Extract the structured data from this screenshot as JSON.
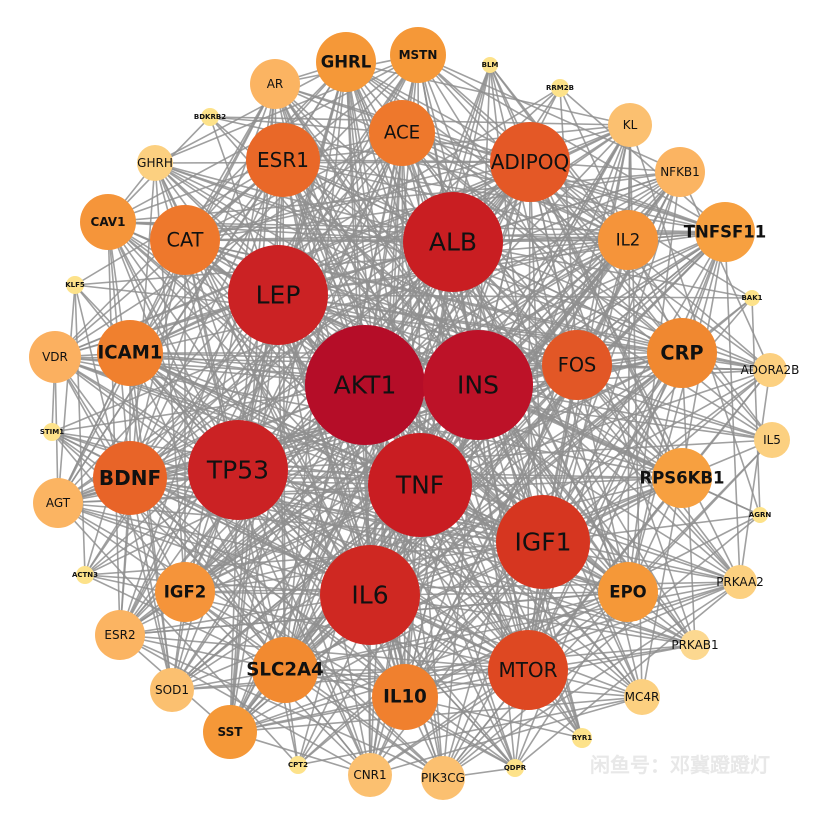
{
  "nodes": [
    {
      "label": "AKT1"
    },
    {
      "label": "INS"
    },
    {
      "label": "TNF"
    },
    {
      "label": "ALB"
    },
    {
      "label": "LEP"
    },
    {
      "label": "TP53"
    },
    {
      "label": "IL6"
    },
    {
      "label": "IGF1"
    },
    {
      "label": "MTOR"
    },
    {
      "label": "FOS"
    },
    {
      "label": "ADIPOQ"
    },
    {
      "label": "ESR1"
    },
    {
      "label": "ACE"
    },
    {
      "label": "CAT"
    },
    {
      "label": "ICAM1"
    },
    {
      "label": "BDNF"
    },
    {
      "label": "IL10"
    },
    {
      "label": "SLC2A4"
    },
    {
      "label": "IGF2"
    },
    {
      "label": "CRP"
    },
    {
      "label": "IL2"
    },
    {
      "label": "EPO"
    },
    {
      "label": "TNFSF11"
    },
    {
      "label": "RPS6KB1"
    },
    {
      "label": "CAV1"
    },
    {
      "label": "GHRL"
    },
    {
      "label": "MSTN"
    },
    {
      "label": "SST"
    },
    {
      "label": "AR"
    },
    {
      "label": "KL"
    },
    {
      "label": "NFKB1"
    },
    {
      "label": "VDR"
    },
    {
      "label": "AGT"
    },
    {
      "label": "ESR2"
    },
    {
      "label": "SOD1"
    },
    {
      "label": "CNR1"
    },
    {
      "label": "PIK3CG"
    },
    {
      "label": "MC4R"
    },
    {
      "label": "PRKAB1"
    },
    {
      "label": "PRKAA2"
    },
    {
      "label": "IL5"
    },
    {
      "label": "ADORA2B"
    },
    {
      "label": "GHRH"
    },
    {
      "label": "BLM"
    },
    {
      "label": "RRM2B"
    },
    {
      "label": "BDKRB2"
    },
    {
      "label": "BAK1"
    },
    {
      "label": "KLF5"
    },
    {
      "label": "STIM1"
    },
    {
      "label": "AGRN"
    },
    {
      "label": "ACTN3"
    },
    {
      "label": "CPT2"
    },
    {
      "label": "QDPR"
    },
    {
      "label": "RYR1"
    }
  ],
  "watermark": "闲鱼号：邓冀蹬蹬灯"
}
